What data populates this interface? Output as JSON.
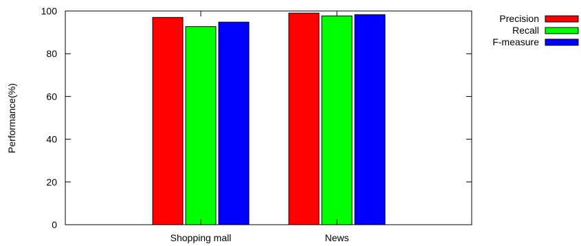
{
  "chart_data": {
    "type": "bar",
    "title": "",
    "xlabel": "",
    "ylabel": "Performance(%)",
    "categories": [
      "Shopping mall",
      "News"
    ],
    "series": [
      {
        "name": "Precision",
        "color": "#ff0000",
        "values": [
          97.0,
          99.0
        ]
      },
      {
        "name": "Recall",
        "color": "#00ff00",
        "values": [
          92.7,
          97.7
        ]
      },
      {
        "name": "F-measure",
        "color": "#0000ff",
        "values": [
          94.8,
          98.3
        ]
      }
    ],
    "ylim": [
      0,
      100
    ],
    "yticks": [
      "0",
      "20",
      "40",
      "60",
      "80",
      "100"
    ],
    "grid": false,
    "legend_position": "top-right"
  }
}
